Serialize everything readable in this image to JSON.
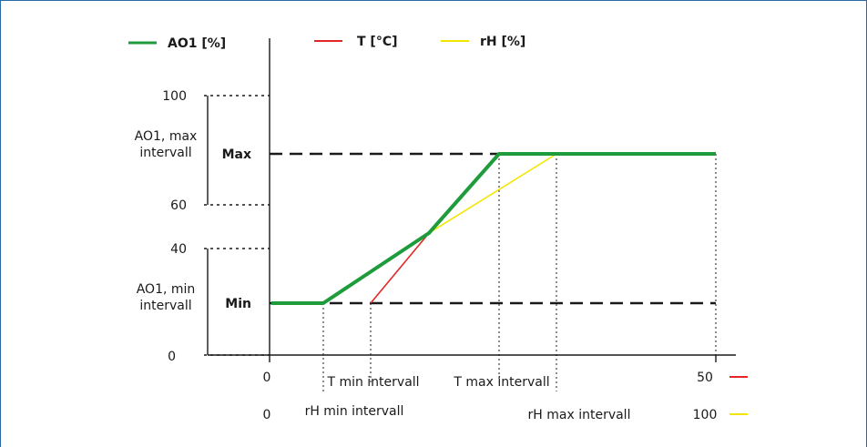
{
  "legend": {
    "ao1": {
      "label": "AO1 [%]",
      "color": "#1e9c3c"
    },
    "temp": {
      "label": "T [°C]",
      "color": "#e32626"
    },
    "rh": {
      "label": "rH [%]",
      "color": "#f2e600"
    }
  },
  "y_axis": {
    "ticks": {
      "t100": "100",
      "t60": "60",
      "t40": "40",
      "t0": "0"
    },
    "max_label": "Max",
    "min_label": "Min",
    "max_interval_line1": "AO1, max",
    "max_interval_line2": "intervall",
    "min_interval_line1": "AO1, min",
    "min_interval_line2": "intervall"
  },
  "x_axis": {
    "t_start": "0",
    "t_end": "50",
    "rh_start": "0",
    "rh_end": "100",
    "t_min": "T min intervall",
    "t_max": "T max intervall",
    "rh_min": "rH min intervall",
    "rh_max": "rH max intervall"
  },
  "chart_data": {
    "type": "line",
    "title": "",
    "yticks": [
      "0",
      "40",
      "60",
      "100"
    ],
    "series": [
      {
        "name": "AO1 [%]",
        "color": "#1e9c3c"
      },
      {
        "name": "T [°C]",
        "color": "#e32626"
      },
      {
        "name": "rH [%]",
        "color": "#f2e600"
      }
    ]
  }
}
